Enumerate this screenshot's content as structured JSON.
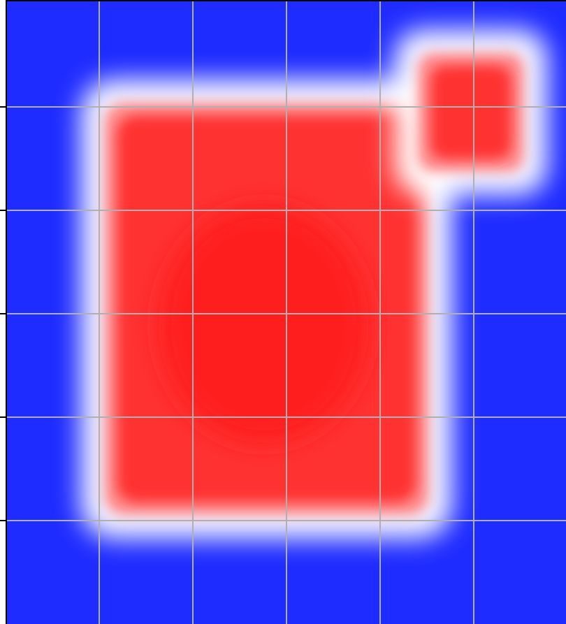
{
  "chart_data": {
    "type": "heatmap",
    "subtype": "filled-contour",
    "title": "",
    "xlabel": "",
    "ylabel": "",
    "colormap": [
      "#1a1aff",
      "#ffffff",
      "#ff1a1a"
    ],
    "value_range": [
      -1,
      1
    ],
    "grid": true,
    "grid_color": "#b0b0b0",
    "x_gridlines": 5,
    "y_gridlines": 5,
    "tick_labels_visible": false,
    "regions": [
      {
        "name": "main-square",
        "value": 0.9,
        "x": [
          0.17,
          0.76
        ],
        "y": [
          0.16,
          0.83
        ]
      },
      {
        "name": "corner-lobe",
        "value": 0.75,
        "x": [
          0.73,
          0.93
        ],
        "y": [
          0.08,
          0.28
        ]
      }
    ]
  }
}
